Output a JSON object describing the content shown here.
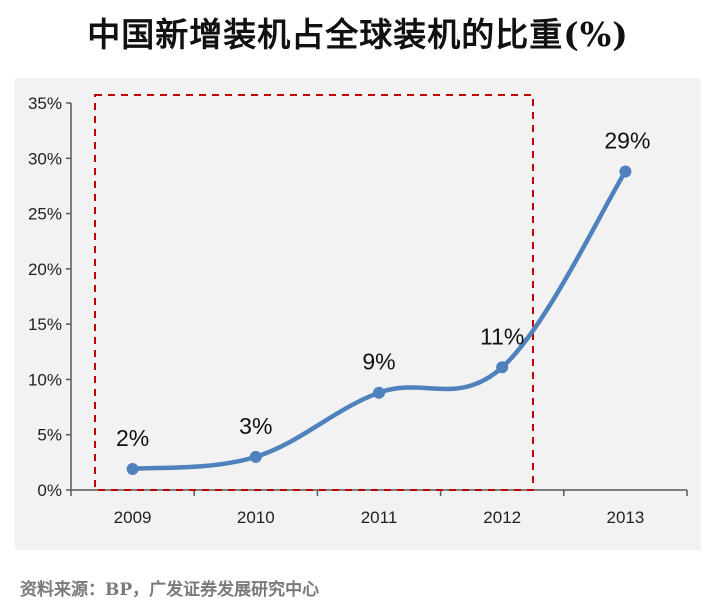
{
  "title": "中国新增装机占全球装机的比重(%)",
  "source": "资料来源：BP，广发证券发展研究中心",
  "chart_data": {
    "type": "line",
    "title": "中国新增装机占全球装机的比重(%)",
    "xlabel": "",
    "ylabel": "",
    "categories": [
      "2009",
      "2010",
      "2011",
      "2012",
      "2013"
    ],
    "series": [
      {
        "values": [
          2,
          3,
          9,
          11,
          29
        ],
        "data_labels": [
          "2%",
          "3%",
          "9%",
          "11%",
          "29%"
        ],
        "plotted": [
          1.9,
          3.0,
          8.8,
          11.1,
          28.8
        ],
        "color": "#4f81bd"
      }
    ],
    "ylim": [
      0,
      35
    ],
    "yticks": [
      "0%",
      "5%",
      "10%",
      "15%",
      "20%",
      "25%",
      "30%",
      "35%"
    ],
    "grid": false,
    "legend": "none",
    "highlight": {
      "from": "2009",
      "to": "2012",
      "color": "#c00000",
      "style": "dashed"
    },
    "plot_background": "#f2f2f2"
  }
}
